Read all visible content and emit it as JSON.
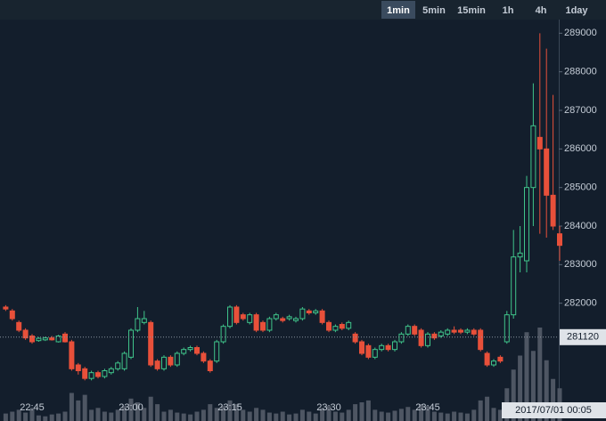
{
  "toolbar": {
    "buttons": [
      "1min",
      "5min",
      "15min",
      "1h",
      "4h",
      "1day"
    ],
    "active": 0
  },
  "chart_data": {
    "type": "candlestick",
    "categories": [
      null,
      null,
      null,
      null,
      "22:45",
      null,
      null,
      null,
      null,
      null,
      null,
      null,
      null,
      null,
      null,
      null,
      null,
      null,
      null,
      "23:00",
      null,
      null,
      null,
      null,
      null,
      null,
      null,
      null,
      null,
      null,
      null,
      null,
      null,
      null,
      "23:15",
      null,
      null,
      null,
      null,
      null,
      null,
      null,
      null,
      null,
      null,
      null,
      null,
      null,
      null,
      "23:30",
      null,
      null,
      null,
      null,
      null,
      null,
      null,
      null,
      null,
      null,
      null,
      null,
      null,
      null,
      "23:45",
      null,
      null,
      null,
      null,
      null,
      null,
      null,
      null,
      null,
      null,
      null,
      null,
      null,
      null,
      null,
      null,
      null,
      null,
      null,
      null
    ],
    "open": [
      281900,
      281800,
      281500,
      281300,
      281150,
      281030,
      281050,
      281100,
      281000,
      281200,
      281000,
      280400,
      280300,
      280050,
      280200,
      280100,
      280200,
      280300,
      280300,
      280600,
      281300,
      281500,
      281500,
      280500,
      280300,
      280600,
      280400,
      280700,
      280800,
      280850,
      280700,
      280500,
      280500,
      281000,
      281400,
      281900,
      281700,
      281500,
      281700,
      281500,
      281300,
      281600,
      281600,
      281600,
      281550,
      281600,
      281800,
      281750,
      281800,
      281500,
      281300,
      281450,
      281350,
      281200,
      281000,
      280900,
      280600,
      280800,
      280900,
      280800,
      281000,
      281200,
      281400,
      281300,
      280900,
      281200,
      281150,
      281200,
      281300,
      281300,
      281250,
      281300,
      281300,
      280700,
      280400,
      280600,
      281000,
      281700,
      283200,
      283100,
      285000,
      286300,
      286000,
      284800,
      283800
    ],
    "high": [
      281950,
      281850,
      281550,
      281350,
      281200,
      281120,
      281130,
      281150,
      281180,
      281250,
      281050,
      280450,
      280350,
      280250,
      280250,
      280300,
      280350,
      280500,
      280750,
      281350,
      281900,
      281800,
      281550,
      280550,
      280650,
      280650,
      280750,
      280850,
      280900,
      280900,
      280750,
      280550,
      281050,
      281450,
      281950,
      281950,
      281750,
      281750,
      281750,
      281550,
      281650,
      281750,
      281650,
      281700,
      281650,
      281900,
      281850,
      281850,
      281850,
      281550,
      281450,
      281500,
      281550,
      281250,
      281050,
      280950,
      280850,
      280950,
      280950,
      281050,
      281250,
      281450,
      281450,
      281350,
      281250,
      281250,
      281300,
      281350,
      281400,
      281350,
      281350,
      281350,
      281350,
      280750,
      280550,
      280650,
      281800,
      283900,
      284000,
      285300,
      287700,
      289000,
      288600,
      287400,
      284000
    ],
    "low": [
      281800,
      281550,
      281250,
      281050,
      280950,
      281000,
      281020,
      281030,
      280980,
      280980,
      280250,
      280150,
      280000,
      280000,
      280050,
      280050,
      280150,
      280250,
      280250,
      280550,
      281250,
      281450,
      280350,
      280250,
      280250,
      280350,
      280350,
      280650,
      280750,
      280650,
      280450,
      280200,
      280450,
      280950,
      281350,
      281450,
      281550,
      281450,
      281250,
      281250,
      281250,
      281550,
      281500,
      281550,
      281500,
      281550,
      281700,
      281700,
      281450,
      281250,
      281250,
      281300,
      281300,
      280950,
      280650,
      280550,
      280550,
      280750,
      280750,
      280750,
      280950,
      281150,
      281150,
      280850,
      280850,
      281050,
      281100,
      281150,
      281200,
      281200,
      281200,
      281150,
      280750,
      280350,
      280350,
      280450,
      280950,
      281600,
      282800,
      282800,
      284000,
      283800,
      283700,
      283900,
      283100
    ],
    "close": [
      281850,
      281600,
      281300,
      281100,
      281000,
      281090,
      281100,
      281050,
      281150,
      281000,
      280300,
      280250,
      280050,
      280200,
      280100,
      280250,
      280300,
      280450,
      280700,
      281300,
      281600,
      281600,
      280400,
      280300,
      280600,
      280400,
      280700,
      280800,
      280850,
      280700,
      280500,
      280250,
      281000,
      281400,
      281900,
      281500,
      281600,
      281700,
      281300,
      281300,
      281600,
      281700,
      281550,
      281650,
      281600,
      281850,
      281750,
      281800,
      281500,
      281300,
      281400,
      281350,
      281500,
      281000,
      280700,
      280600,
      280800,
      280900,
      280800,
      281000,
      281200,
      281400,
      281200,
      280900,
      281200,
      281100,
      281250,
      281300,
      281250,
      281250,
      281300,
      281200,
      280800,
      280400,
      280500,
      280500,
      281700,
      283200,
      283300,
      285000,
      286600,
      286000,
      284800,
      284000,
      283500
    ],
    "volume": [
      8,
      10,
      12,
      9,
      14,
      6,
      5,
      7,
      8,
      10,
      30,
      22,
      28,
      12,
      14,
      10,
      9,
      12,
      16,
      24,
      20,
      14,
      26,
      18,
      10,
      12,
      9,
      8,
      7,
      10,
      12,
      18,
      14,
      16,
      22,
      18,
      12,
      10,
      14,
      12,
      9,
      8,
      10,
      7,
      8,
      12,
      10,
      8,
      14,
      16,
      10,
      9,
      12,
      18,
      20,
      22,
      12,
      10,
      9,
      11,
      13,
      15,
      12,
      18,
      16,
      10,
      9,
      8,
      10,
      9,
      8,
      12,
      22,
      26,
      14,
      12,
      35,
      55,
      70,
      95,
      75,
      100,
      65,
      45,
      35
    ],
    "up_color": "#3fc48a",
    "down_color": "#e8503a",
    "volume_color": "#4e5663",
    "ylim": [
      279500,
      289400
    ],
    "yticks": [
      282000,
      283000,
      284000,
      285000,
      286000,
      287000,
      288000,
      289000
    ],
    "crosshair": {
      "price": 281120,
      "time": "2017/07/01 00:05"
    }
  }
}
